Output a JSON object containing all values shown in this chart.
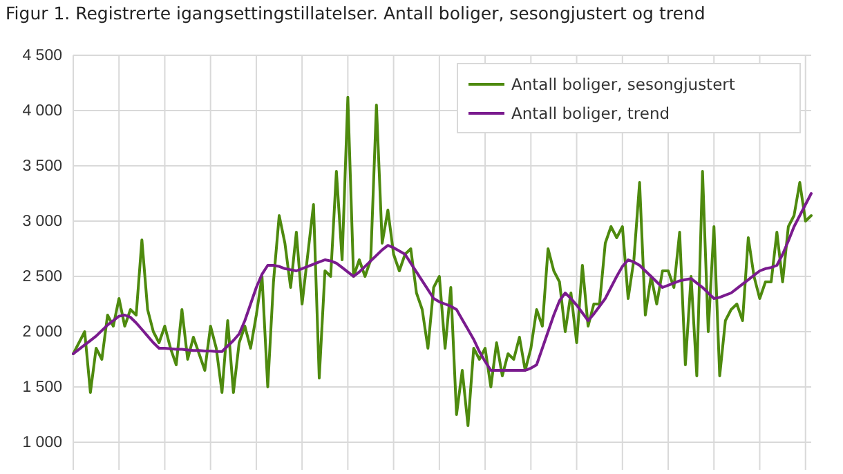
{
  "chart_data": {
    "type": "line",
    "title": "Figur 1. Registrerte igangsettingstillatelser. Antall boliger, sesongjustert og trend",
    "categories": [
      null,
      null,
      null,
      null,
      null,
      null,
      null,
      null,
      null,
      null,
      null,
      null,
      null,
      null,
      null,
      null,
      null,
      null,
      null,
      null,
      null,
      null,
      null,
      null,
      null,
      null,
      null,
      null,
      null,
      null,
      null,
      null,
      null,
      null,
      null,
      null,
      null,
      null,
      null,
      null,
      null,
      null,
      null,
      null,
      null,
      null,
      null,
      null,
      null,
      null,
      null,
      null,
      null,
      null,
      null,
      null,
      null,
      null,
      null,
      null,
      null,
      null,
      null,
      null,
      null,
      null,
      null,
      null,
      null,
      null,
      null,
      null,
      null,
      null,
      null,
      null,
      null,
      null,
      null,
      null,
      null,
      null,
      null,
      null,
      null,
      null,
      null,
      null,
      null,
      null,
      null,
      null,
      null,
      null,
      null,
      null,
      null,
      null,
      null,
      null,
      null,
      null,
      null,
      null,
      null,
      null,
      null,
      null,
      null,
      null,
      null,
      null,
      null,
      null,
      null,
      null,
      null,
      null,
      null,
      null,
      null,
      null,
      null,
      null,
      null,
      null,
      null,
      null,
      null,
      null
    ],
    "series": [
      {
        "name": "Antall boliger, sesongjustert",
        "color": "#4e8a0e",
        "values": [
          1800,
          1900,
          2000,
          1450,
          1850,
          1750,
          2150,
          2050,
          2300,
          2050,
          2200,
          2150,
          2830,
          2200,
          2000,
          1900,
          2050,
          1850,
          1700,
          2200,
          1750,
          1950,
          1800,
          1650,
          2050,
          1850,
          1450,
          2100,
          1450,
          1900,
          2050,
          1850,
          2150,
          2500,
          1500,
          2450,
          3050,
          2800,
          2400,
          2900,
          2250,
          2700,
          3150,
          1580,
          2550,
          2500,
          3450,
          2650,
          4120,
          2500,
          2650,
          2500,
          2650,
          4050,
          2800,
          3100,
          2700,
          2550,
          2700,
          2750,
          2350,
          2200,
          1850,
          2400,
          2500,
          1850,
          2400,
          1250,
          1650,
          1150,
          1850,
          1750,
          1850,
          1500,
          1900,
          1600,
          1800,
          1750,
          1950,
          1650,
          1850,
          2200,
          2050,
          2750,
          2550,
          2450,
          2000,
          2350,
          1900,
          2600,
          2050,
          2250,
          2250,
          2800,
          2950,
          2850,
          2950,
          2300,
          2650,
          3350,
          2150,
          2500,
          2250,
          2550,
          2550,
          2400,
          2900,
          1700,
          2500,
          1600,
          3450,
          2000,
          2950,
          1600,
          2100,
          2200,
          2250,
          2100,
          2850,
          2500,
          2300,
          2450,
          2450,
          2900,
          2450,
          2950,
          3050,
          3350,
          3000,
          3050
        ]
      },
      {
        "name": "Antall boliger, trend",
        "color": "#7a1b8e",
        "values": [
          1800,
          1840,
          1880,
          1920,
          1960,
          2010,
          2060,
          2100,
          2140,
          2150,
          2130,
          2080,
          2020,
          1960,
          1900,
          1850,
          1850,
          1845,
          1840,
          1840,
          1835,
          1830,
          1830,
          1825,
          1825,
          1820,
          1820,
          1870,
          1920,
          1980,
          2100,
          2250,
          2400,
          2520,
          2600,
          2600,
          2590,
          2570,
          2560,
          2550,
          2570,
          2590,
          2610,
          2630,
          2650,
          2640,
          2620,
          2580,
          2540,
          2500,
          2540,
          2590,
          2640,
          2690,
          2740,
          2780,
          2760,
          2730,
          2700,
          2620,
          2540,
          2460,
          2380,
          2300,
          2270,
          2250,
          2230,
          2200,
          2110,
          2020,
          1930,
          1820,
          1730,
          1650,
          1650,
          1650,
          1650,
          1650,
          1650,
          1650,
          1670,
          1700,
          1850,
          2000,
          2150,
          2280,
          2350,
          2300,
          2240,
          2170,
          2100,
          2160,
          2230,
          2300,
          2400,
          2500,
          2590,
          2650,
          2630,
          2600,
          2550,
          2500,
          2450,
          2400,
          2420,
          2440,
          2460,
          2470,
          2480,
          2440,
          2400,
          2350,
          2300,
          2310,
          2330,
          2350,
          2390,
          2430,
          2470,
          2510,
          2550,
          2570,
          2580,
          2600,
          2700,
          2820,
          2950,
          3050,
          3150,
          3250
        ]
      }
    ],
    "ylim": [
      750,
      4500
    ],
    "yticks": [
      {
        "value": 1000,
        "label": "1 000"
      },
      {
        "value": 1500,
        "label": "1 500"
      },
      {
        "value": 2000,
        "label": "2 000"
      },
      {
        "value": 2500,
        "label": "2 500"
      },
      {
        "value": 3000,
        "label": "3 000"
      },
      {
        "value": 3500,
        "label": "3 500"
      },
      {
        "value": 4000,
        "label": "4 000"
      },
      {
        "value": 4500,
        "label": "4 500"
      }
    ],
    "grid": true,
    "legend": "top right",
    "tick_labels": "y",
    "marker": "none",
    "line_style": "solid"
  }
}
